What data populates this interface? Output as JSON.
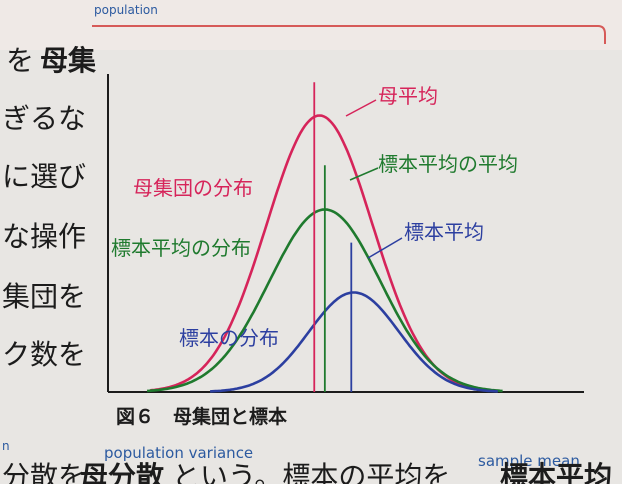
{
  "page": {
    "top_label_blue": "population",
    "top_right_fragment": "を",
    "top_right_bold": "母集",
    "side_lines": [
      "ぎるな",
      "に選び",
      "な操作",
      "集団を",
      "ク数を"
    ],
    "figure_caption": "図６　母集団と標本",
    "bottom_en_left": "n",
    "bottom_en_population_variance": "population variance",
    "bottom_en_sample_mean": "sample mean",
    "bottom_text_left": "分散を",
    "bottom_text_bold": "母分散",
    "bottom_text_mid": "という。標本の平均を",
    "bottom_text_bold2": "標本平均"
  },
  "chart_data": {
    "type": "line",
    "title": "",
    "xlabel": "",
    "ylabel": "",
    "xlim": [
      -4,
      5
    ],
    "ylim": [
      0,
      1.15
    ],
    "grid": false,
    "legend": "none",
    "series": [
      {
        "name": "母集団の分布",
        "color": "#d6245a",
        "mean": 0,
        "sd": 1.0,
        "peak": 1.0
      },
      {
        "name": "標本平均の分布",
        "color": "#1f7a2e",
        "mean": 0.1,
        "sd": 1.05,
        "peak": 0.66
      },
      {
        "name": "標本の分布",
        "color": "#2c3fa0",
        "mean": 0.65,
        "sd": 0.85,
        "peak": 0.36
      }
    ],
    "vlines": [
      {
        "name": "母平均",
        "color": "#d6245a",
        "x": -0.1
      },
      {
        "name": "標本平均の平均",
        "color": "#1f7a2e",
        "x": 0.1
      },
      {
        "name": "標本平均",
        "color": "#2c3fa0",
        "x": 0.6
      }
    ],
    "labels": {
      "population_mean": "母平均",
      "mean_of_sample_means": "標本平均の平均",
      "population_distribution": "母集団の分布",
      "sample_mean_distribution": "標本平均の分布",
      "sample_mean": "標本平均",
      "sample_distribution": "標本の分布"
    }
  }
}
